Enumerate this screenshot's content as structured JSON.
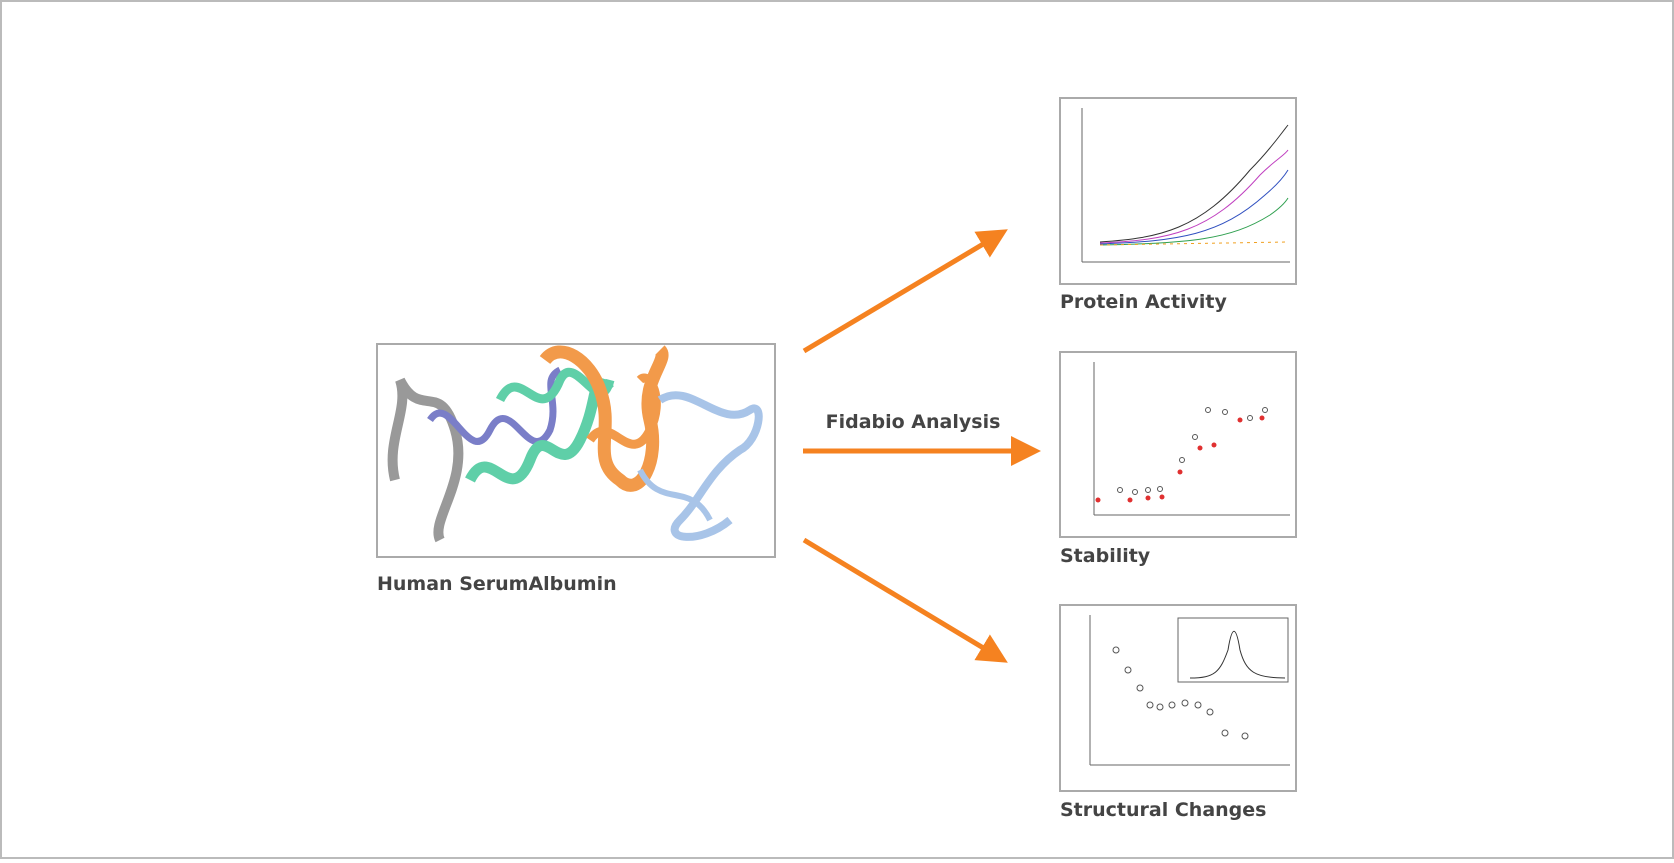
{
  "source": {
    "label": "Human SerumAlbumin"
  },
  "process": {
    "label": "Fidabio Analysis"
  },
  "outputs": [
    {
      "label": "Protein Activity"
    },
    {
      "label": "Stability"
    },
    {
      "label": "Structural Changes"
    }
  ]
}
